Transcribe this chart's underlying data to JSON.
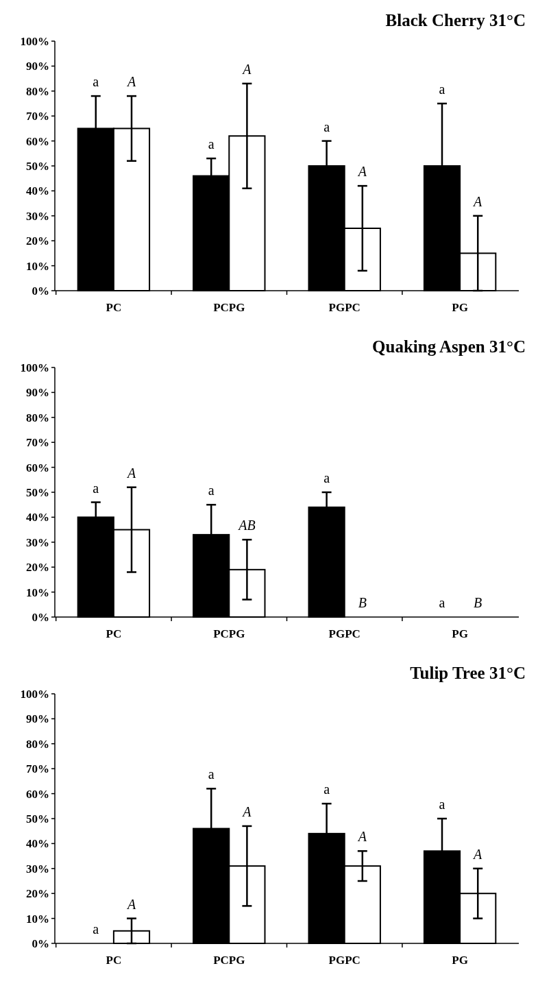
{
  "chart_data": [
    {
      "type": "bar",
      "title": "Black Cherry 31°C",
      "categories": [
        "PC",
        "PCPG",
        "PGPC",
        "PG"
      ],
      "ylim": [
        0,
        100
      ],
      "yticks": [
        {
          "value": 0,
          "label": "0%"
        },
        {
          "value": 10,
          "label": "10%"
        },
        {
          "value": 20,
          "label": "20%"
        },
        {
          "value": 30,
          "label": "30%"
        },
        {
          "value": 40,
          "label": "40%"
        },
        {
          "value": 50,
          "label": "50%"
        },
        {
          "value": 60,
          "label": "60%"
        },
        {
          "value": 70,
          "label": "70%"
        },
        {
          "value": 80,
          "label": "80%"
        },
        {
          "value": 90,
          "label": "90%"
        },
        {
          "value": 100,
          "label": "100%"
        }
      ],
      "grid": false,
      "series": [
        {
          "color": "#000000",
          "values": [
            65,
            46,
            50,
            50
          ],
          "errors": [
            13,
            7,
            10,
            25
          ]
        },
        {
          "color": "#ffffff",
          "values": [
            65,
            62,
            25,
            15
          ],
          "errors": [
            13,
            21,
            17,
            15
          ]
        }
      ],
      "annotations": [
        "a",
        "A",
        "a",
        "A",
        "a",
        "A",
        "a",
        "A"
      ]
    },
    {
      "type": "bar",
      "title": "Quaking Aspen 31°C",
      "categories": [
        "PC",
        "PCPG",
        "PGPC",
        "PG"
      ],
      "ylim": [
        0,
        100
      ],
      "yticks": [
        {
          "value": 0,
          "label": "0%"
        },
        {
          "value": 10,
          "label": "10%"
        },
        {
          "value": 20,
          "label": "20%"
        },
        {
          "value": 30,
          "label": "30%"
        },
        {
          "value": 40,
          "label": "40%"
        },
        {
          "value": 50,
          "label": "50%"
        },
        {
          "value": 60,
          "label": "60%"
        },
        {
          "value": 70,
          "label": "70%"
        },
        {
          "value": 80,
          "label": "80%"
        },
        {
          "value": 90,
          "label": "90%"
        },
        {
          "value": 100,
          "label": "100%"
        }
      ],
      "grid": false,
      "series": [
        {
          "color": "#000000",
          "values": [
            40,
            33,
            44,
            0
          ],
          "errors": [
            6,
            12,
            6,
            null
          ]
        },
        {
          "color": "#ffffff",
          "values": [
            35,
            19,
            0,
            0
          ],
          "errors": [
            17,
            12,
            null,
            null
          ]
        }
      ],
      "annotations": [
        "a",
        "A",
        "a",
        "AB",
        "a",
        "B",
        "a",
        "B"
      ]
    },
    {
      "type": "bar",
      "title": "Tulip Tree 31°C",
      "categories": [
        "PC",
        "PCPG",
        "PGPC",
        "PG"
      ],
      "ylim": [
        0,
        100
      ],
      "yticks": [
        {
          "value": 0,
          "label": "0%"
        },
        {
          "value": 10,
          "label": "10%"
        },
        {
          "value": 20,
          "label": "20%"
        },
        {
          "value": 30,
          "label": "30%"
        },
        {
          "value": 40,
          "label": "40%"
        },
        {
          "value": 50,
          "label": "50%"
        },
        {
          "value": 60,
          "label": "60%"
        },
        {
          "value": 70,
          "label": "70%"
        },
        {
          "value": 80,
          "label": "80%"
        },
        {
          "value": 90,
          "label": "90%"
        },
        {
          "value": 100,
          "label": "100%"
        }
      ],
      "grid": false,
      "series": [
        {
          "color": "#000000",
          "values": [
            0,
            46,
            44,
            37
          ],
          "errors": [
            null,
            16,
            12,
            13
          ]
        },
        {
          "color": "#ffffff",
          "values": [
            5,
            31,
            31,
            20
          ],
          "errors": [
            5,
            16,
            6,
            10
          ]
        }
      ],
      "annotations": [
        "a",
        "A",
        "a",
        "A",
        "a",
        "A",
        "a",
        "A"
      ]
    }
  ]
}
